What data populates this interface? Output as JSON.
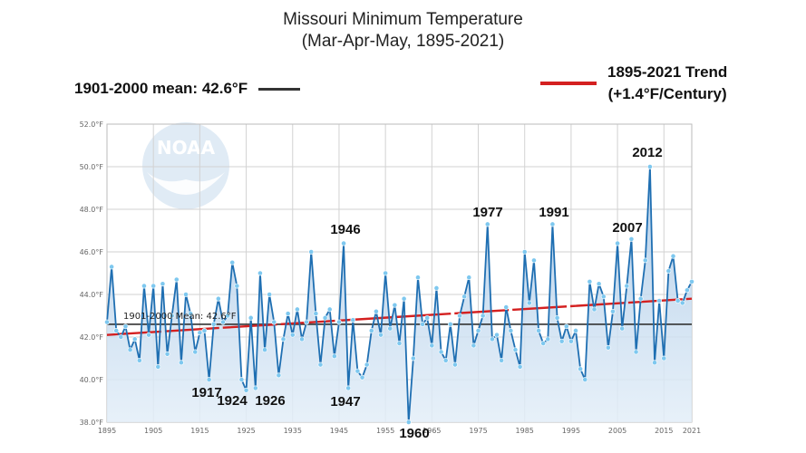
{
  "chart_data": {
    "type": "line",
    "title": "Missouri Minimum Temperature",
    "subtitle": "(Mar-Apr-May, 1895-2021)",
    "xlabel": "",
    "ylabel": "",
    "xlim": [
      1895,
      2021
    ],
    "ylim": [
      38.0,
      52.0
    ],
    "x_ticks": [
      "1895",
      "1905",
      "1915",
      "1925",
      "1935",
      "1945",
      "1955",
      "1965",
      "1975",
      "1985",
      "1995",
      "2005",
      "2015",
      "2021"
    ],
    "y_ticks": [
      "38.0°F",
      "40.0°F",
      "42.0°F",
      "44.0°F",
      "46.0°F",
      "48.0°F",
      "50.0°F",
      "52.0°F"
    ],
    "grid": true,
    "legend": [
      {
        "label": "1901-2000 mean: 42.6°F",
        "color": "#333333",
        "position": "top-left"
      },
      {
        "label": "1895-2021 Trend",
        "label2": "(+1.4°F/Century)",
        "color": "#d42020",
        "position": "top-right"
      }
    ],
    "mean": {
      "label": "1901-2000 Mean: 42.6°F",
      "value": 42.6
    },
    "trend": {
      "start": [
        1895,
        42.1
      ],
      "end": [
        2021,
        43.8
      ]
    },
    "annotations": [
      {
        "year": 1917,
        "label": "1917"
      },
      {
        "year": 1924,
        "label": "1924"
      },
      {
        "year": 1926,
        "label": "1926"
      },
      {
        "year": 1946,
        "label": "1946"
      },
      {
        "year": 1947,
        "label": "1947"
      },
      {
        "year": 1960,
        "label": "1960"
      },
      {
        "year": 1977,
        "label": "1977"
      },
      {
        "year": 1991,
        "label": "1991"
      },
      {
        "year": 2007,
        "label": "2007"
      },
      {
        "year": 2012,
        "label": "2012"
      }
    ],
    "series": [
      {
        "color": "#1f6fb2",
        "x": [
          1895,
          1896,
          1897,
          1898,
          1899,
          1900,
          1901,
          1902,
          1903,
          1904,
          1905,
          1906,
          1907,
          1908,
          1909,
          1910,
          1911,
          1912,
          1913,
          1914,
          1915,
          1916,
          1917,
          1918,
          1919,
          1920,
          1921,
          1922,
          1923,
          1924,
          1925,
          1926,
          1927,
          1928,
          1929,
          1930,
          1931,
          1932,
          1933,
          1934,
          1935,
          1936,
          1937,
          1938,
          1939,
          1940,
          1941,
          1942,
          1943,
          1944,
          1945,
          1946,
          1947,
          1948,
          1949,
          1950,
          1951,
          1952,
          1953,
          1954,
          1955,
          1956,
          1957,
          1958,
          1959,
          1960,
          1961,
          1962,
          1963,
          1964,
          1965,
          1966,
          1967,
          1968,
          1969,
          1970,
          1971,
          1972,
          1973,
          1974,
          1975,
          1976,
          1977,
          1978,
          1979,
          1980,
          1981,
          1982,
          1983,
          1984,
          1985,
          1986,
          1987,
          1988,
          1989,
          1990,
          1991,
          1992,
          1993,
          1994,
          1995,
          1996,
          1997,
          1998,
          1999,
          2000,
          2001,
          2002,
          2003,
          2004,
          2005,
          2006,
          2007,
          2008,
          2009,
          2010,
          2011,
          2012,
          2013,
          2014,
          2015,
          2016,
          2017,
          2018,
          2019,
          2020,
          2021
        ],
        "y": [
          42.7,
          45.3,
          42.3,
          42.0,
          42.5,
          41.4,
          41.9,
          40.9,
          44.4,
          42.1,
          44.4,
          40.6,
          44.5,
          41.2,
          43.0,
          44.7,
          40.8,
          44.0,
          43.1,
          41.3,
          42.2,
          42.3,
          40.0,
          42.6,
          43.8,
          42.7,
          43.0,
          45.5,
          44.4,
          40.0,
          39.5,
          42.9,
          39.6,
          45.0,
          41.4,
          44.0,
          42.7,
          40.2,
          41.9,
          43.1,
          42.1,
          43.3,
          41.9,
          42.7,
          46.0,
          43.1,
          40.7,
          42.9,
          43.3,
          41.1,
          42.7,
          46.4,
          39.6,
          42.8,
          40.4,
          40.1,
          40.7,
          42.3,
          43.2,
          42.1,
          45.0,
          42.4,
          43.5,
          41.7,
          43.8,
          38.0,
          41.0,
          44.8,
          42.6,
          42.9,
          41.6,
          44.3,
          41.3,
          40.9,
          42.6,
          40.7,
          43.0,
          43.9,
          44.8,
          41.6,
          42.3,
          43.0,
          47.3,
          41.9,
          42.1,
          40.9,
          43.4,
          42.3,
          41.4,
          40.6,
          46.0,
          43.6,
          45.6,
          42.3,
          41.7,
          41.9,
          47.3,
          42.9,
          41.8,
          42.5,
          41.8,
          42.3,
          40.5,
          40.0,
          44.6,
          43.3,
          44.5,
          43.9,
          41.5,
          43.2,
          46.4,
          42.4,
          44.4,
          46.6,
          41.3,
          43.8,
          45.6,
          50.0,
          40.8,
          43.7,
          41.0,
          45.1,
          45.8,
          43.7,
          43.6,
          44.2,
          44.6
        ]
      }
    ]
  },
  "watermark": {
    "text": "NOAA"
  }
}
